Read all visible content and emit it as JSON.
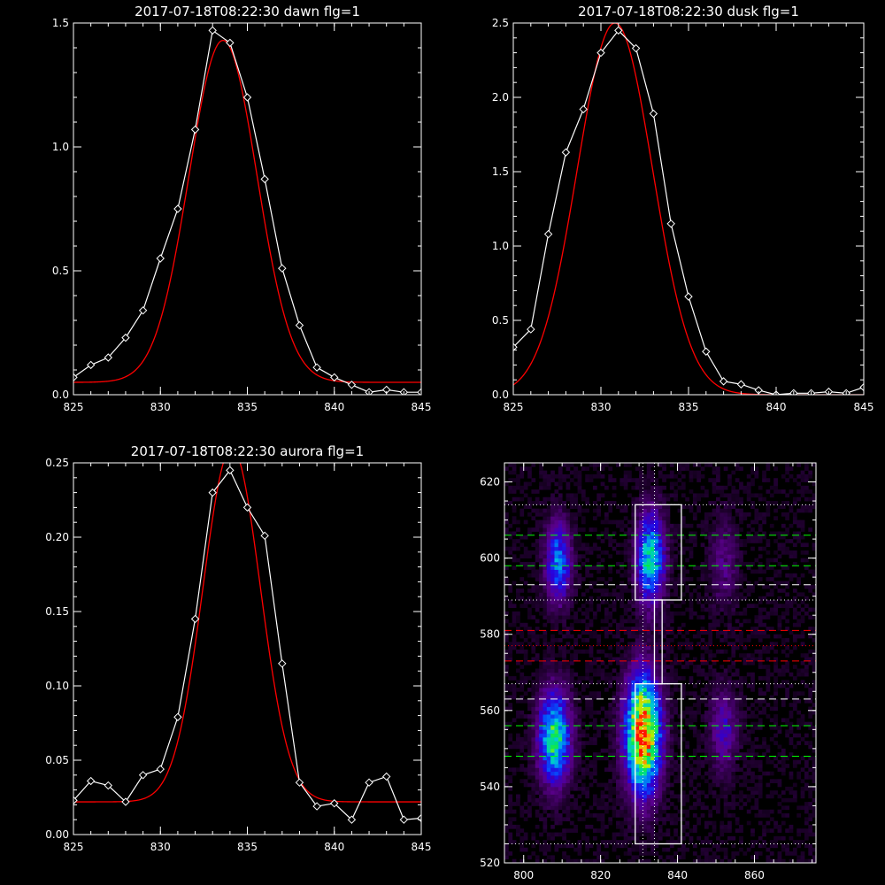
{
  "chart_data": [
    {
      "type": "line",
      "title": "2017-07-18T08:22:30 dawn flg=1",
      "xlim": [
        825,
        845
      ],
      "ylim": [
        0,
        1.5
      ],
      "xticks": [
        825,
        830,
        835,
        840,
        845
      ],
      "yticks": [
        0.0,
        0.5,
        1.0,
        1.5
      ],
      "ytick_labels": [
        "0.0",
        "0.5",
        "1.0",
        "1.5"
      ],
      "grid": false,
      "series": [
        {
          "color": "#ffffff",
          "marker": "diamond",
          "x": [
            825,
            826,
            827,
            828,
            829,
            830,
            831,
            832,
            833,
            834,
            835,
            836,
            837,
            838,
            839,
            840,
            841,
            842,
            843,
            844,
            845
          ],
          "y": [
            0.07,
            0.12,
            0.15,
            0.23,
            0.34,
            0.55,
            0.75,
            1.07,
            1.47,
            1.42,
            1.2,
            0.87,
            0.51,
            0.28,
            0.11,
            0.07,
            0.04,
            0.01,
            0.02,
            0.01,
            0.01
          ]
        },
        {
          "color": "#ff0000",
          "fit": "gaussian",
          "amplitude": 1.38,
          "center": 833.6,
          "sigma": 1.95,
          "offset": 0.05
        }
      ]
    },
    {
      "type": "line",
      "title": "2017-07-18T08:22:30 dusk flg=1",
      "xlim": [
        825,
        845
      ],
      "ylim": [
        0,
        2.5
      ],
      "xticks": [
        825,
        830,
        835,
        840,
        845
      ],
      "yticks": [
        0.0,
        0.5,
        1.0,
        1.5,
        2.0,
        2.5
      ],
      "ytick_labels": [
        "0.0",
        "0.5",
        "1.0",
        "1.5",
        "2.0",
        "2.5"
      ],
      "grid": false,
      "series": [
        {
          "color": "#ffffff",
          "marker": "diamond",
          "x": [
            825,
            826,
            827,
            828,
            829,
            830,
            831,
            832,
            833,
            834,
            835,
            836,
            837,
            838,
            839,
            840,
            841,
            842,
            843,
            844,
            845
          ],
          "y": [
            0.32,
            0.44,
            1.08,
            1.63,
            1.92,
            2.3,
            2.45,
            2.33,
            1.89,
            1.15,
            0.66,
            0.29,
            0.09,
            0.07,
            0.03,
            0.0,
            0.01,
            0.01,
            0.02,
            0.01,
            0.05
          ]
        },
        {
          "color": "#ff0000",
          "fit": "gaussian",
          "amplitude": 2.5,
          "center": 830.8,
          "sigma": 2.15,
          "offset": 0.0
        }
      ]
    },
    {
      "type": "line",
      "title": "2017-07-18T08:22:30 aurora flg=1",
      "xlim": [
        825,
        845
      ],
      "ylim": [
        0,
        0.25
      ],
      "xticks": [
        825,
        830,
        835,
        840,
        845
      ],
      "yticks": [
        0.0,
        0.05,
        0.1,
        0.15,
        0.2,
        0.25
      ],
      "ytick_labels": [
        "0.00",
        "0.05",
        "0.10",
        "0.15",
        "0.20",
        "0.25"
      ],
      "grid": false,
      "series": [
        {
          "color": "#ffffff",
          "marker": "diamond",
          "x": [
            825,
            826,
            827,
            828,
            829,
            830,
            831,
            832,
            833,
            834,
            835,
            836,
            837,
            838,
            839,
            840,
            841,
            842,
            843,
            844,
            845
          ],
          "y": [
            0.023,
            0.036,
            0.033,
            0.022,
            0.04,
            0.044,
            0.079,
            0.145,
            0.23,
            0.245,
            0.22,
            0.201,
            0.115,
            0.035,
            0.019,
            0.021,
            0.01,
            0.035,
            0.039,
            0.01,
            0.011
          ]
        },
        {
          "color": "#ff0000",
          "fit": "gaussian",
          "amplitude": 0.238,
          "center": 834.1,
          "sigma": 1.65,
          "offset": 0.022
        }
      ]
    },
    {
      "type": "heatmap",
      "title": "",
      "xlim": [
        795,
        876
      ],
      "ylim": [
        520,
        625
      ],
      "xticks": [
        800,
        820,
        840,
        860
      ],
      "yticks": [
        520,
        540,
        560,
        580,
        600,
        620
      ],
      "grid": false,
      "blobs": [
        {
          "x": 809,
          "y": 599,
          "sx": 2.2,
          "sy": 7,
          "peak": 0.42
        },
        {
          "x": 833,
          "y": 600,
          "sx": 2.4,
          "sy": 8,
          "peak": 0.55
        },
        {
          "x": 852,
          "y": 599,
          "sx": 2.4,
          "sy": 8,
          "peak": 0.14
        },
        {
          "x": 808,
          "y": 553,
          "sx": 2.8,
          "sy": 8,
          "peak": 0.6
        },
        {
          "x": 831,
          "y": 554,
          "sx": 3.0,
          "sy": 10,
          "peak": 1.0
        },
        {
          "x": 852,
          "y": 555,
          "sx": 2.4,
          "sy": 7,
          "peak": 0.22
        }
      ],
      "boxes": [
        {
          "x0": 829,
          "x1": 841,
          "y0": 589,
          "y1": 614
        },
        {
          "x0": 829,
          "x1": 841,
          "y0": 525,
          "y1": 567
        },
        {
          "x0": 834,
          "x1": 836,
          "y0": 567,
          "y1": 589
        }
      ],
      "hlines": [
        {
          "y": 614,
          "color": "#ffffff",
          "style": "dotted"
        },
        {
          "y": 606,
          "color": "#00ff00",
          "style": "dashed"
        },
        {
          "y": 598,
          "color": "#00ff00",
          "style": "dashed"
        },
        {
          "y": 593,
          "color": "#ffffff",
          "style": "dashed"
        },
        {
          "y": 589,
          "color": "#ffffff",
          "style": "dotted"
        },
        {
          "y": 581,
          "color": "#ff0000",
          "style": "dashed"
        },
        {
          "y": 577,
          "color": "#ff0000",
          "style": "dotted"
        },
        {
          "y": 573,
          "color": "#ff0000",
          "style": "dashed"
        },
        {
          "y": 567,
          "color": "#ffffff",
          "style": "dotted"
        },
        {
          "y": 563,
          "color": "#ffffff",
          "style": "dashed"
        },
        {
          "y": 556,
          "color": "#00ff00",
          "style": "dashed"
        },
        {
          "y": 548,
          "color": "#00ff00",
          "style": "dashed"
        },
        {
          "y": 525,
          "color": "#ffffff",
          "style": "dotted"
        }
      ],
      "vlines": [
        {
          "x": 831,
          "color": "#ffffff",
          "style": "dotted"
        },
        {
          "x": 834,
          "color": "#ffffff",
          "style": "dotted"
        }
      ]
    }
  ]
}
